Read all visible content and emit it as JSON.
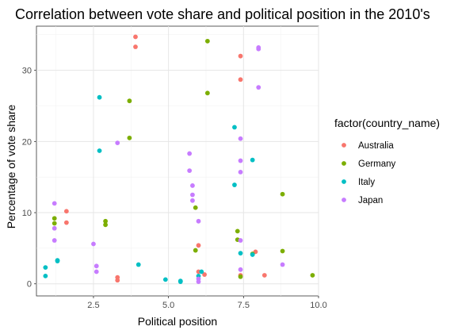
{
  "chart_data": {
    "type": "scatter",
    "title": "Correlation between vote share and political position in the 2010's",
    "xlabel": "Political position",
    "ylabel": "Percentage of vote share",
    "xlim": [
      0.6,
      10.0
    ],
    "ylim": [
      -1.7,
      36.2
    ],
    "x_ticks": [
      2.5,
      5.0,
      7.5,
      10.0
    ],
    "x_tick_labels": [
      "2.5",
      "5.0",
      "7.5",
      "10.0"
    ],
    "y_ticks": [
      0,
      10,
      20,
      30
    ],
    "y_tick_labels": [
      "0",
      "10",
      "20",
      "30"
    ],
    "grid": true,
    "legend": {
      "title": "factor(country_name)",
      "position": "right"
    },
    "series": [
      {
        "name": "Australia",
        "color": "#F8766D",
        "points": [
          [
            1.6,
            10.2
          ],
          [
            1.6,
            8.6
          ],
          [
            3.3,
            0.9
          ],
          [
            3.3,
            0.5
          ],
          [
            3.9,
            34.7
          ],
          [
            3.9,
            33.3
          ],
          [
            6.0,
            5.4
          ],
          [
            6.0,
            1.7
          ],
          [
            6.2,
            1.3
          ],
          [
            7.4,
            32.0
          ],
          [
            7.4,
            28.7
          ],
          [
            7.4,
            1.2
          ],
          [
            7.9,
            4.5
          ],
          [
            8.2,
            1.2
          ]
        ]
      },
      {
        "name": "Germany",
        "color": "#7CAE00",
        "points": [
          [
            1.2,
            9.2
          ],
          [
            1.2,
            8.5
          ],
          [
            2.9,
            8.8
          ],
          [
            2.9,
            8.3
          ],
          [
            3.7,
            25.7
          ],
          [
            3.7,
            20.5
          ],
          [
            5.9,
            10.7
          ],
          [
            5.9,
            4.7
          ],
          [
            6.3,
            34.1
          ],
          [
            6.3,
            26.8
          ],
          [
            7.3,
            7.4
          ],
          [
            7.3,
            6.2
          ],
          [
            7.4,
            1.0
          ],
          [
            7.8,
            4.2
          ],
          [
            8.8,
            12.6
          ],
          [
            8.8,
            4.6
          ],
          [
            9.8,
            1.2
          ]
        ]
      },
      {
        "name": "Italy",
        "color": "#00BFC4",
        "points": [
          [
            0.9,
            2.3
          ],
          [
            0.9,
            1.1
          ],
          [
            1.3,
            3.3
          ],
          [
            1.3,
            3.2
          ],
          [
            2.7,
            26.2
          ],
          [
            2.7,
            18.7
          ],
          [
            4.0,
            2.7
          ],
          [
            4.9,
            0.6
          ],
          [
            5.4,
            0.4
          ],
          [
            5.4,
            0.3
          ],
          [
            6.0,
            1.1
          ],
          [
            6.1,
            1.7
          ],
          [
            7.2,
            22.0
          ],
          [
            7.2,
            13.9
          ],
          [
            7.4,
            4.3
          ],
          [
            7.8,
            17.4
          ],
          [
            7.8,
            4.1
          ]
        ]
      },
      {
        "name": "Japan",
        "color": "#C77CFF",
        "points": [
          [
            1.2,
            11.3
          ],
          [
            1.2,
            7.8
          ],
          [
            1.2,
            6.1
          ],
          [
            2.5,
            5.6
          ],
          [
            2.6,
            2.5
          ],
          [
            2.6,
            1.7
          ],
          [
            3.3,
            19.8
          ],
          [
            5.7,
            18.3
          ],
          [
            5.7,
            15.9
          ],
          [
            5.8,
            13.8
          ],
          [
            5.8,
            12.5
          ],
          [
            5.8,
            11.7
          ],
          [
            6.0,
            8.8
          ],
          [
            6.0,
            0.7
          ],
          [
            6.0,
            0.3
          ],
          [
            7.4,
            20.4
          ],
          [
            7.4,
            17.3
          ],
          [
            7.4,
            15.7
          ],
          [
            7.4,
            6.1
          ],
          [
            7.4,
            2.0
          ],
          [
            8.0,
            33.2
          ],
          [
            8.0,
            33.0
          ],
          [
            8.0,
            27.6
          ],
          [
            8.8,
            2.7
          ]
        ]
      }
    ]
  }
}
